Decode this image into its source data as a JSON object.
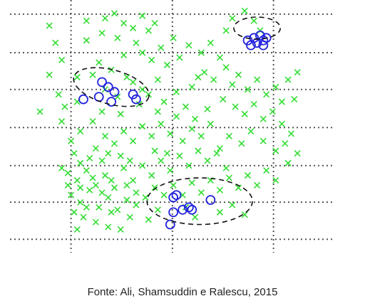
{
  "caption": "Fonte: Ali, Shamsuddin e Ralescu, 2015",
  "chart_data": {
    "type": "scatter",
    "title": "",
    "xlabel": "",
    "ylabel": "",
    "xlim": [
      0,
      10
    ],
    "ylim": [
      0,
      10
    ],
    "grid": true,
    "grid_style": "dotted",
    "x_grid": [
      1.6,
      4.87,
      8.13
    ],
    "y_grid": [
      0.4,
      1.91,
      3.4,
      4.95,
      6.5,
      8.0,
      9.57
    ],
    "legend": "none",
    "series": [
      {
        "marker": "x",
        "color": "#33dd33",
        "points": [
          [
            0.9,
            9.1
          ],
          [
            1.1,
            8.4
          ],
          [
            1.3,
            7.7
          ],
          [
            0.9,
            7.1
          ],
          [
            1.2,
            6.3
          ],
          [
            0.6,
            5.6
          ],
          [
            1.4,
            5.8
          ],
          [
            1.3,
            5.2
          ],
          [
            1.8,
            7.0
          ],
          [
            1.8,
            6.0
          ],
          [
            2.1,
            9.3
          ],
          [
            2.1,
            8.5
          ],
          [
            2.7,
            9.4
          ],
          [
            2.6,
            8.8
          ],
          [
            3.0,
            9.6
          ],
          [
            3.3,
            9.2
          ],
          [
            3.6,
            9.0
          ],
          [
            3.7,
            8.4
          ],
          [
            3.9,
            9.5
          ],
          [
            4.1,
            8.9
          ],
          [
            4.3,
            9.2
          ],
          [
            3.9,
            8.0
          ],
          [
            4.5,
            8.2
          ],
          [
            4.2,
            7.7
          ],
          [
            4.7,
            7.5
          ],
          [
            4.4,
            6.9
          ],
          [
            3.1,
            8.6
          ],
          [
            3.3,
            7.9
          ],
          [
            2.5,
            7.6
          ],
          [
            2.9,
            7.3
          ],
          [
            3.4,
            7.0
          ],
          [
            2.3,
            7.1
          ],
          [
            2.7,
            6.5
          ],
          [
            3.1,
            6.2
          ],
          [
            3.6,
            6.8
          ],
          [
            3.9,
            6.5
          ],
          [
            4.1,
            6.3
          ],
          [
            4.6,
            6.0
          ],
          [
            4.9,
            8.6
          ],
          [
            5.1,
            7.8
          ],
          [
            5.4,
            8.3
          ],
          [
            5.8,
            8.0
          ],
          [
            6.1,
            8.4
          ],
          [
            6.4,
            7.8
          ],
          [
            6.6,
            8.9
          ],
          [
            6.8,
            9.4
          ],
          [
            7.2,
            9.7
          ],
          [
            7.5,
            9.3
          ],
          [
            7.7,
            8.9
          ],
          [
            5.9,
            7.2
          ],
          [
            6.2,
            6.9
          ],
          [
            6.6,
            7.4
          ],
          [
            6.8,
            6.7
          ],
          [
            7.0,
            7.1
          ],
          [
            7.3,
            6.5
          ],
          [
            7.6,
            6.9
          ],
          [
            7.9,
            6.3
          ],
          [
            8.2,
            6.6
          ],
          [
            8.4,
            6.0
          ],
          [
            6.5,
            6.1
          ],
          [
            6.9,
            5.8
          ],
          [
            7.2,
            5.5
          ],
          [
            7.5,
            5.9
          ],
          [
            7.8,
            5.3
          ],
          [
            8.1,
            5.6
          ],
          [
            8.4,
            5.1
          ],
          [
            8.7,
            4.7
          ],
          [
            8.5,
            4.3
          ],
          [
            8.2,
            4.0
          ],
          [
            8.9,
            3.9
          ],
          [
            8.6,
            3.5
          ],
          [
            7.8,
            4.4
          ],
          [
            7.4,
            4.8
          ],
          [
            7.1,
            4.3
          ],
          [
            6.7,
            4.6
          ],
          [
            6.4,
            4.1
          ],
          [
            6.1,
            5.1
          ],
          [
            5.8,
            4.6
          ],
          [
            5.5,
            4.9
          ],
          [
            5.2,
            4.4
          ],
          [
            4.8,
            4.7
          ],
          [
            4.5,
            5.1
          ],
          [
            4.2,
            4.6
          ],
          [
            3.9,
            5.0
          ],
          [
            3.6,
            4.4
          ],
          [
            3.3,
            4.8
          ],
          [
            3.0,
            4.3
          ],
          [
            2.7,
            4.6
          ],
          [
            2.4,
            4.1
          ],
          [
            2.2,
            3.7
          ],
          [
            1.9,
            3.5
          ],
          [
            1.7,
            3.9
          ],
          [
            1.5,
            3.1
          ],
          [
            1.8,
            2.8
          ],
          [
            2.1,
            3.2
          ],
          [
            2.4,
            2.6
          ],
          [
            2.7,
            3.0
          ],
          [
            3.0,
            2.5
          ],
          [
            3.3,
            3.3
          ],
          [
            3.6,
            2.8
          ],
          [
            3.9,
            3.4
          ],
          [
            4.2,
            3.0
          ],
          [
            4.5,
            3.6
          ],
          [
            4.8,
            3.2
          ],
          [
            5.1,
            3.8
          ],
          [
            5.4,
            3.4
          ],
          [
            5.7,
            4.0
          ],
          [
            6.0,
            3.6
          ],
          [
            6.3,
            3.9
          ],
          [
            6.6,
            3.3
          ],
          [
            1.6,
            2.2
          ],
          [
            1.9,
            1.9
          ],
          [
            2.2,
            2.4
          ],
          [
            2.5,
            1.7
          ],
          [
            2.8,
            2.1
          ],
          [
            3.1,
            1.6
          ],
          [
            3.4,
            2.0
          ],
          [
            3.7,
            2.3
          ],
          [
            2.0,
            1.3
          ],
          [
            2.4,
            1.1
          ],
          [
            2.8,
            0.9
          ],
          [
            1.7,
            1.5
          ],
          [
            1.5,
            2.6
          ],
          [
            1.3,
            3.3
          ],
          [
            2.6,
            3.6
          ],
          [
            3.2,
            3.8
          ],
          [
            2.9,
            2.8
          ],
          [
            2.3,
            2.9
          ],
          [
            1.9,
            2.5
          ],
          [
            2.6,
            2.3
          ],
          [
            3.4,
            2.6
          ],
          [
            3.7,
            1.8
          ],
          [
            4.0,
            2.1
          ],
          [
            4.3,
            2.5
          ],
          [
            4.6,
            2.2
          ],
          [
            4.9,
            2.6
          ],
          [
            5.2,
            2.2
          ],
          [
            5.5,
            2.7
          ],
          [
            5.8,
            2.3
          ],
          [
            6.1,
            2.8
          ],
          [
            6.4,
            2.4
          ],
          [
            6.7,
            2.9
          ],
          [
            7.0,
            2.5
          ],
          [
            7.3,
            3.0
          ],
          [
            7.6,
            2.6
          ],
          [
            7.9,
            3.2
          ],
          [
            8.2,
            2.8
          ],
          [
            5.3,
            1.7
          ],
          [
            5.6,
            1.3
          ],
          [
            6.4,
            1.5
          ],
          [
            6.8,
            1.8
          ],
          [
            7.2,
            1.4
          ],
          [
            4.4,
            1.6
          ],
          [
            4.1,
            1.2
          ],
          [
            3.5,
            1.3
          ],
          [
            3.2,
            0.8
          ],
          [
            2.9,
            1.5
          ],
          [
            2.1,
            1.7
          ],
          [
            1.8,
            0.8
          ],
          [
            4.7,
            3.9
          ],
          [
            5.0,
            5.4
          ],
          [
            5.3,
            5.8
          ],
          [
            5.6,
            5.3
          ],
          [
            6.0,
            5.7
          ],
          [
            4.3,
            4.0
          ],
          [
            3.5,
            3.6
          ],
          [
            2.8,
            3.9
          ],
          [
            1.6,
            4.4
          ],
          [
            1.9,
            4.8
          ],
          [
            2.3,
            5.2
          ],
          [
            2.6,
            5.6
          ],
          [
            3.2,
            5.5
          ],
          [
            3.8,
            5.9
          ],
          [
            4.4,
            5.6
          ],
          [
            5.0,
            6.4
          ],
          [
            5.5,
            6.6
          ],
          [
            5.7,
            7.0
          ],
          [
            8.8,
            6.1
          ],
          [
            8.6,
            6.9
          ],
          [
            8.9,
            7.2
          ]
        ]
      },
      {
        "marker": "o",
        "color": "#2222dd",
        "points": [
          [
            2.6,
            6.8
          ],
          [
            2.8,
            6.6
          ],
          [
            3.0,
            6.4
          ],
          [
            2.5,
            6.2
          ],
          [
            2.9,
            6.0
          ],
          [
            3.6,
            6.3
          ],
          [
            3.7,
            6.1
          ],
          [
            2.0,
            6.1
          ],
          [
            7.3,
            8.5
          ],
          [
            7.5,
            8.6
          ],
          [
            7.6,
            8.4
          ],
          [
            7.8,
            8.5
          ],
          [
            7.9,
            8.6
          ],
          [
            7.7,
            8.7
          ],
          [
            7.4,
            8.3
          ],
          [
            7.8,
            8.3
          ],
          [
            4.9,
            2.1
          ],
          [
            5.0,
            2.2
          ],
          [
            4.9,
            1.5
          ],
          [
            5.2,
            1.6
          ],
          [
            5.4,
            1.7
          ],
          [
            5.5,
            1.6
          ],
          [
            6.1,
            2.0
          ],
          [
            4.8,
            1.0
          ]
        ]
      }
    ],
    "annotations": [
      {
        "shape": "dashed-ellipse",
        "cx": 2.9,
        "cy": 6.6,
        "rx": 1.25,
        "ry": 0.7,
        "rotation_deg": 15
      },
      {
        "shape": "dashed-ellipse",
        "cx": 7.6,
        "cy": 9.0,
        "rx": 0.75,
        "ry": 0.45,
        "rotation_deg": 0
      },
      {
        "shape": "dashed-ellipse",
        "cx": 5.75,
        "cy": 1.95,
        "rx": 1.7,
        "ry": 0.95,
        "rotation_deg": 0
      }
    ]
  }
}
